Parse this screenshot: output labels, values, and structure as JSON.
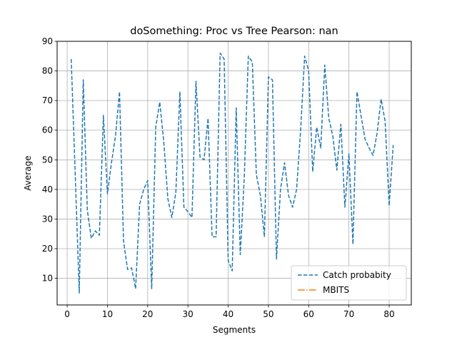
{
  "chart_data": {
    "type": "line",
    "title": "doSomething: Proc vs Tree Pearson: nan",
    "xlabel": "Segments",
    "ylabel": "Average",
    "xlim": [
      -2.5,
      85.5
    ],
    "ylim": [
      1,
      90
    ],
    "xticks": [
      0,
      10,
      20,
      30,
      40,
      50,
      60,
      70,
      80
    ],
    "yticks": [
      10,
      20,
      30,
      40,
      50,
      60,
      70,
      80,
      90
    ],
    "grid": true,
    "legend_position": "lower-right",
    "series": [
      {
        "name": "Catch probabity",
        "color": "#1f77b4",
        "style": "dashed",
        "x": [
          1,
          2,
          3,
          4,
          5,
          6,
          7,
          8,
          9,
          10,
          11,
          12,
          13,
          14,
          15,
          16,
          17,
          18,
          19,
          20,
          21,
          22,
          23,
          24,
          25,
          26,
          27,
          28,
          29,
          30,
          31,
          32,
          33,
          34,
          35,
          36,
          37,
          38,
          39,
          40,
          41,
          42,
          43,
          44,
          45,
          46,
          47,
          48,
          49,
          50,
          51,
          52,
          53,
          54,
          55,
          56,
          57,
          58,
          59,
          60,
          61,
          62,
          63,
          64,
          65,
          66,
          67,
          68,
          69,
          70,
          71,
          72,
          73,
          74,
          75,
          76,
          77,
          78,
          79,
          80,
          81
        ],
        "values": [
          84,
          45,
          5,
          77,
          33,
          23.5,
          26,
          24.5,
          65,
          38.5,
          49,
          58,
          73,
          22.5,
          13,
          13.5,
          6.5,
          35,
          40,
          43,
          6.5,
          61,
          69.5,
          56,
          37,
          30.5,
          39,
          73,
          34,
          32.5,
          30.5,
          76.5,
          51,
          50,
          64,
          24,
          24,
          86,
          84,
          16,
          12.5,
          67.5,
          18,
          44,
          85,
          83,
          45,
          38,
          24,
          78,
          77,
          16.5,
          40,
          49,
          38,
          34,
          40,
          60,
          85,
          80,
          46,
          61,
          54,
          82,
          64,
          58,
          46.5,
          62,
          34,
          52,
          21.5,
          73,
          65,
          57,
          54,
          51.5,
          59,
          70.5,
          63,
          34.5,
          55
        ]
      },
      {
        "name": "MBITS",
        "color": "#ff7f0e",
        "style": "dashdot",
        "x": [],
        "values": []
      }
    ]
  }
}
